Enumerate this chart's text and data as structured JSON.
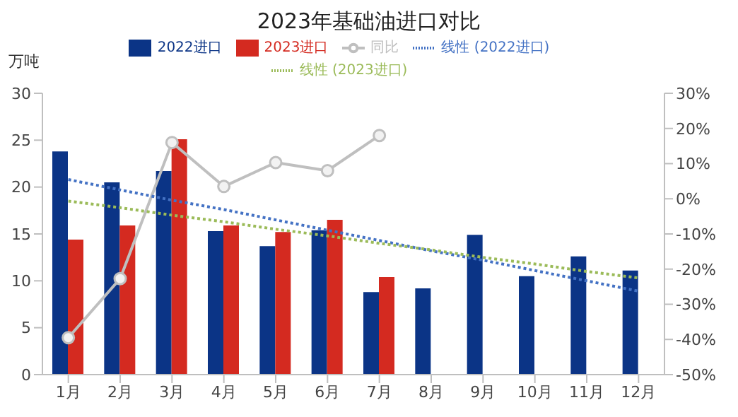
{
  "chart_data": {
    "type": "bar",
    "title": "2023年基础油进口对比",
    "ylabel": "万吨",
    "categories": [
      "1月",
      "2月",
      "3月",
      "4月",
      "5月",
      "6月",
      "7月",
      "8月",
      "9月",
      "10月",
      "11月",
      "12月"
    ],
    "series": [
      {
        "name": "2022进口",
        "color": "#0b3486",
        "values": [
          23.8,
          20.5,
          21.7,
          15.3,
          13.7,
          15.4,
          8.8,
          9.2,
          14.9,
          10.5,
          12.6,
          11.1
        ]
      },
      {
        "name": "2023进口",
        "color": "#d42a20",
        "values": [
          14.4,
          15.9,
          25.1,
          15.9,
          15.2,
          16.5,
          10.4,
          null,
          null,
          null,
          null,
          null
        ]
      },
      {
        "name": "同比",
        "type": "line",
        "axis": "y2",
        "color": "#bfbfbf",
        "marker": "circle",
        "values": [
          -39.5,
          -22.7,
          16,
          3.5,
          10.3,
          8,
          18,
          null,
          null,
          null,
          null,
          null
        ]
      },
      {
        "name": "线性 (2022进口)",
        "type": "line",
        "color": "#4472c4",
        "line_style": "dotted",
        "marker": "none",
        "values": [
          20.8,
          19.7,
          18.6,
          17.6,
          16.5,
          15.4,
          14.3,
          13.2,
          12.2,
          11.1,
          10.0,
          8.9
        ]
      },
      {
        "name": "线性 (2023进口)",
        "type": "line",
        "color": "#9bbb59",
        "line_style": "dotted",
        "marker": "none",
        "values": [
          18.5,
          17.8,
          17.0,
          16.3,
          15.5,
          14.8,
          14.0,
          13.3,
          12.5,
          11.8,
          11.0,
          10.3
        ]
      }
    ],
    "ylim": [
      0,
      30
    ],
    "yticks": [
      0,
      5,
      10,
      15,
      20,
      25,
      30
    ],
    "y2lim": [
      -50,
      30
    ],
    "y2ticks": [
      {
        "value": -50,
        "label": "-50%"
      },
      {
        "value": -40,
        "label": "-40%"
      },
      {
        "value": -30,
        "label": "-30%"
      },
      {
        "value": -20,
        "label": "-20%"
      },
      {
        "value": -10,
        "label": "-10%"
      },
      {
        "value": 0,
        "label": "0%"
      },
      {
        "value": 10,
        "label": "10%"
      },
      {
        "value": 20,
        "label": "20%"
      },
      {
        "value": 30,
        "label": "30%"
      }
    ],
    "grid": false,
    "legend": "top"
  }
}
